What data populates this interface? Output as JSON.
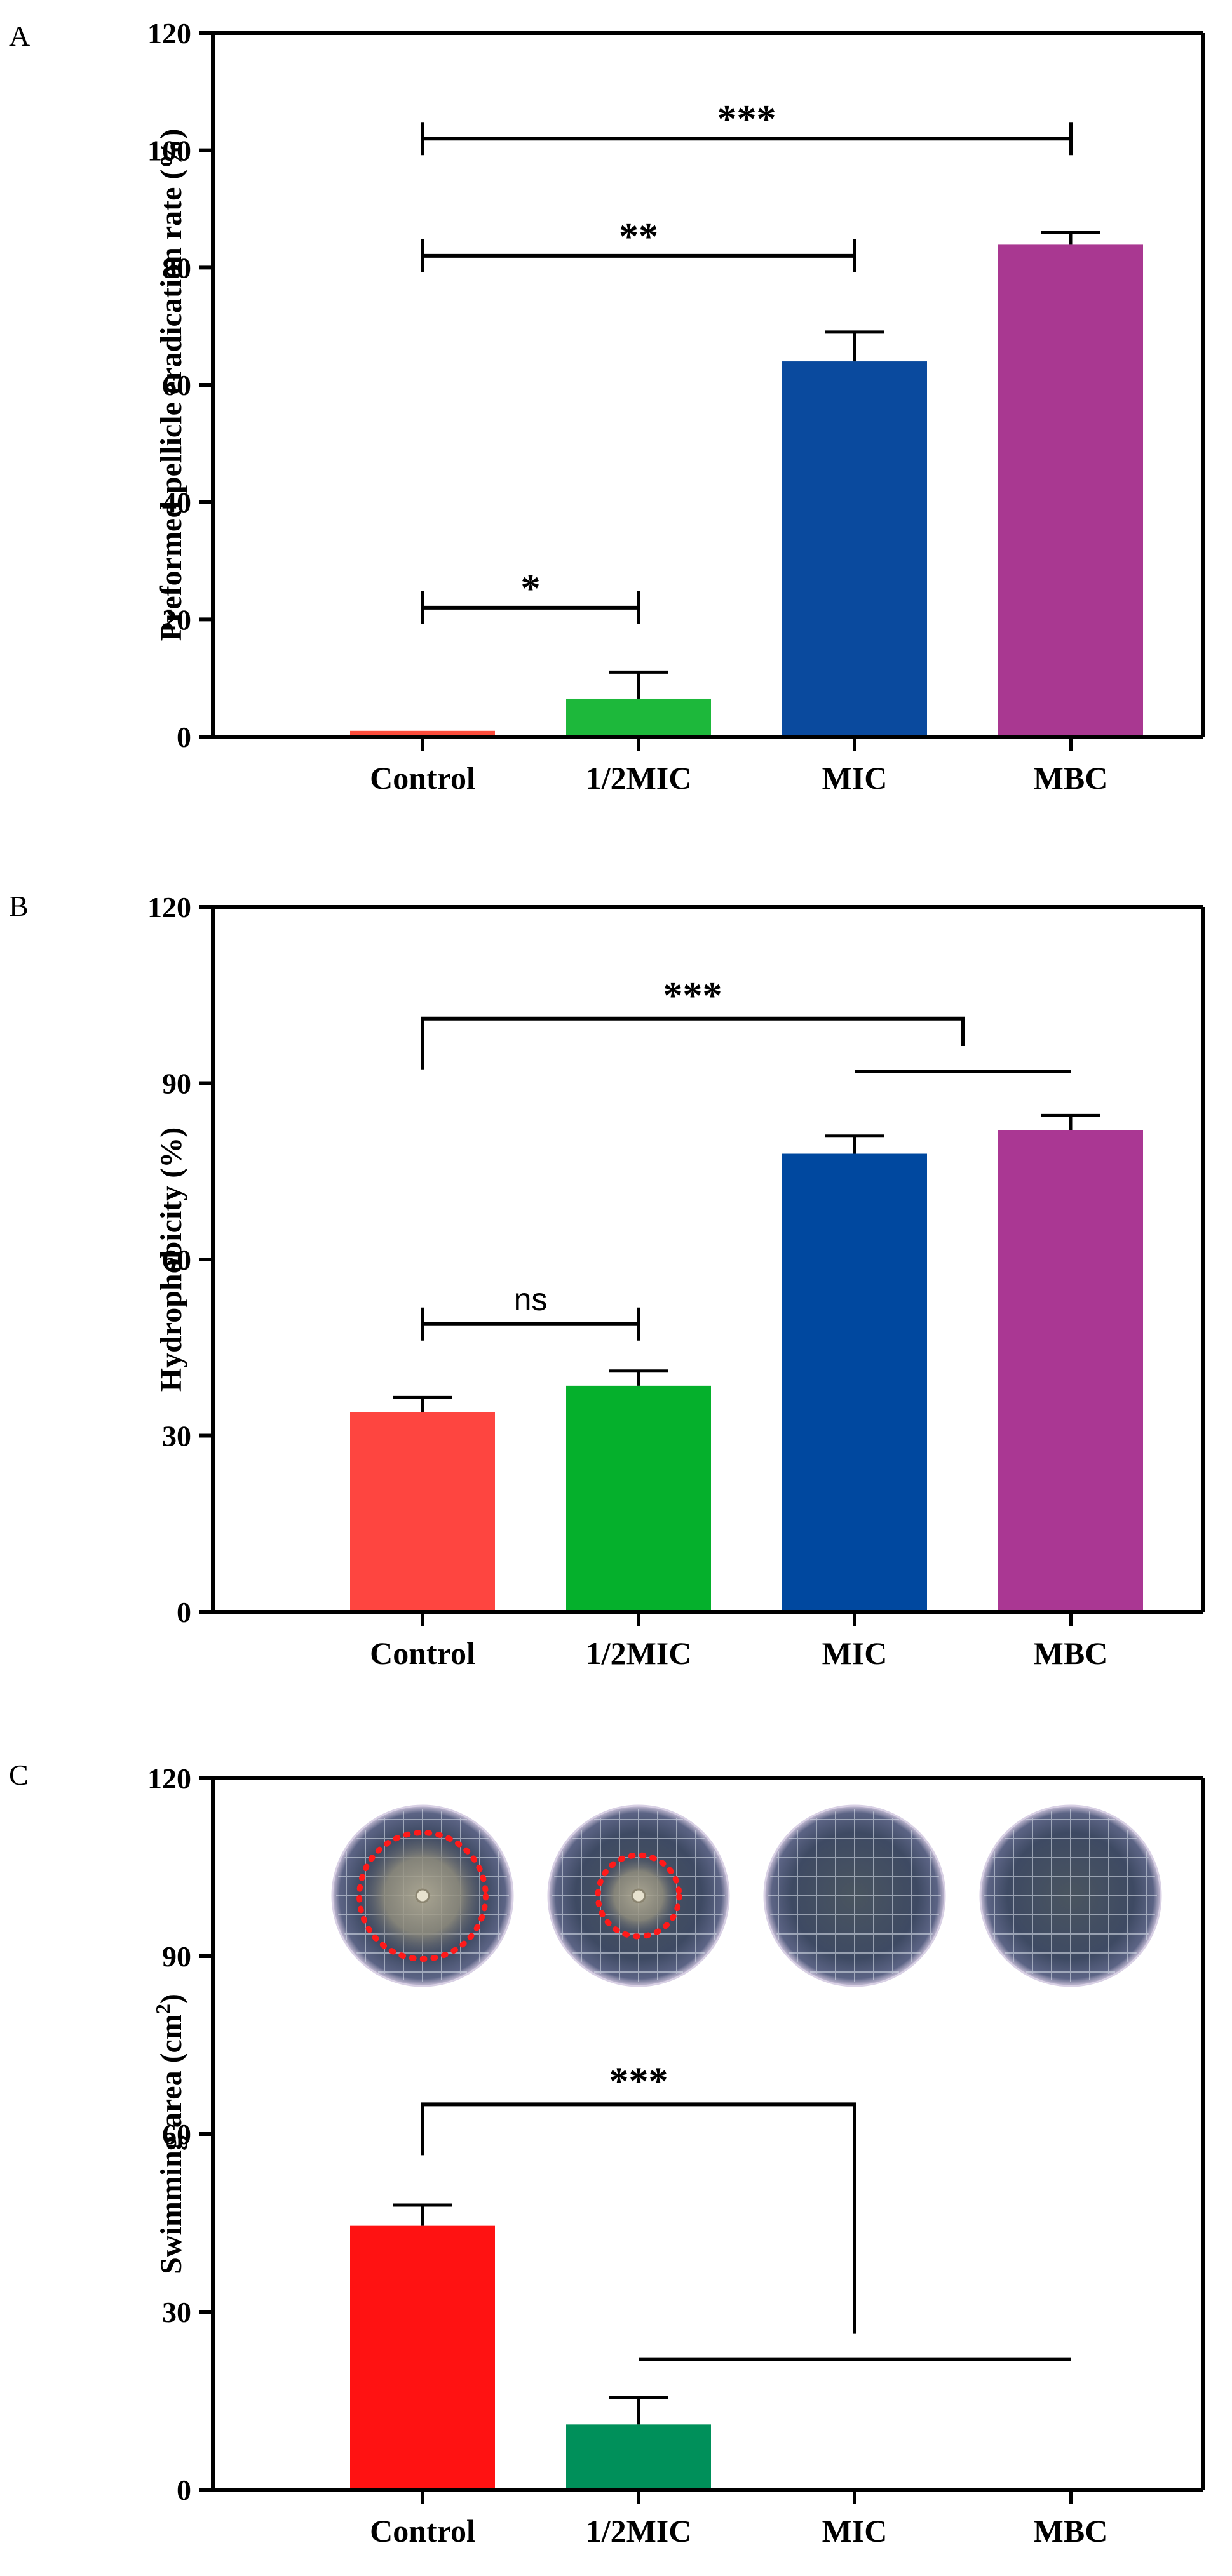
{
  "chart_data": [
    {
      "panel": "A",
      "type": "bar",
      "ylabel": "Preformed pellicle eradication rate (%)",
      "ylim": [
        0,
        120
      ],
      "yticks": [
        0,
        20,
        40,
        60,
        80,
        100,
        120
      ],
      "categories": [
        "Control",
        "1/2MIC",
        "MIC",
        "MBC"
      ],
      "values": [
        1,
        6.5,
        64,
        84
      ],
      "errors": [
        0,
        4.5,
        5,
        2
      ],
      "colors": [
        "#fb4b3b",
        "#1db83b",
        "#0a4a9e",
        "#a93891"
      ],
      "comparisons": [
        {
          "from": "Control",
          "to": "1/2MIC",
          "label": "*",
          "y": 22
        },
        {
          "from": "Control",
          "to": "MIC",
          "label": "**",
          "y": 82
        },
        {
          "from": "Control",
          "to": "MBC",
          "label": "***",
          "y": 102
        }
      ]
    },
    {
      "panel": "B",
      "type": "bar",
      "ylabel": "Hydrophobicity (%)",
      "ylim": [
        0,
        120
      ],
      "yticks": [
        0,
        30,
        60,
        90,
        120
      ],
      "categories": [
        "Control",
        "1/2MIC",
        "MIC",
        "MBC"
      ],
      "values": [
        34,
        38.5,
        78,
        82
      ],
      "errors": [
        2.5,
        2.5,
        3,
        2.5
      ],
      "colors": [
        "#fe4540",
        "#05b02c",
        "#00489f",
        "#aa3793"
      ],
      "comparisons": [
        {
          "from": "Control",
          "to": "1/2MIC",
          "label": "ns",
          "y": 49
        },
        {
          "from": "Control",
          "to": [
            "MIC",
            "MBC"
          ],
          "label": "***",
          "y": 101,
          "group_y": 92
        }
      ]
    },
    {
      "panel": "C",
      "type": "bar",
      "ylabel": "Swimming area (cm",
      "ylabel_sup": "2",
      "ylabel_end": ")",
      "ylim": [
        0,
        120
      ],
      "yticks": [
        0,
        30,
        60,
        90,
        120
      ],
      "categories": [
        "Control",
        "1/2MIC",
        "MIC",
        "MBC"
      ],
      "values": [
        44.5,
        11,
        0,
        0
      ],
      "errors": [
        3.5,
        4.5,
        0,
        0
      ],
      "colors": [
        "#ff1212",
        "#00905a",
        "#0a4a9e",
        "#a93891"
      ],
      "inset_plates": [
        {
          "category": "Control",
          "swim_zone_fraction": 0.7
        },
        {
          "category": "1/2MIC",
          "swim_zone_fraction": 0.45
        },
        {
          "category": "MIC",
          "swim_zone_fraction": 0
        },
        {
          "category": "MBC",
          "swim_zone_fraction": 0
        }
      ],
      "comparisons": [
        {
          "from": "Control",
          "to": [
            "1/2MIC",
            "MIC",
            "MBC"
          ],
          "label": "***",
          "y": 65,
          "group_y": 22
        }
      ]
    }
  ]
}
